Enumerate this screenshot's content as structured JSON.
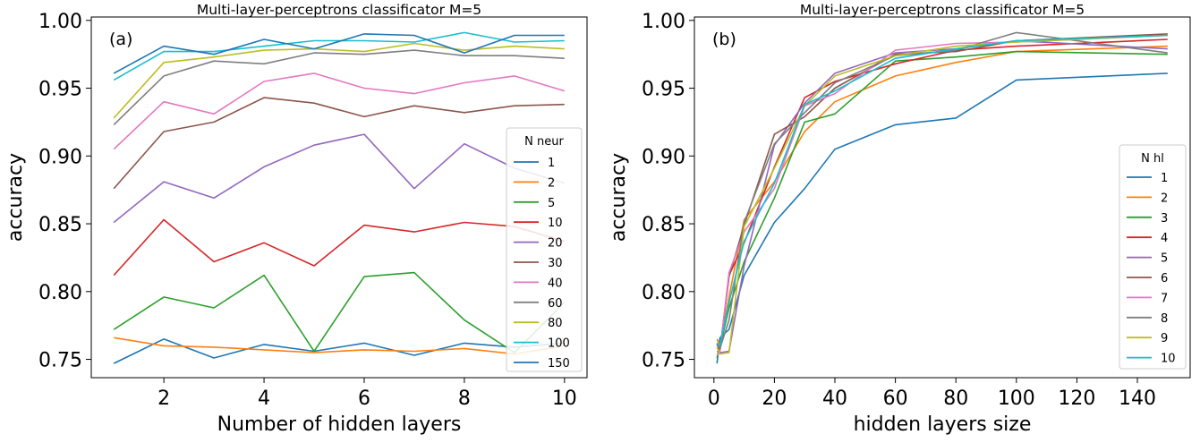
{
  "chart_data": [
    {
      "type": "line",
      "title": "Multi-layer-perceptrons classificator M=5",
      "panel_label": "(a)",
      "xlabel": "Number of hidden layers",
      "ylabel": "accuracy",
      "xlim": [
        0.55,
        10.45
      ],
      "ylim": [
        0.7365,
        1.0025
      ],
      "xticks": [
        2,
        4,
        6,
        8,
        10
      ],
      "yticks": [
        0.75,
        0.8,
        0.85,
        0.9,
        0.95,
        1.0
      ],
      "ytick_labels": [
        "0.75",
        "0.80",
        "0.85",
        "0.90",
        "0.95",
        "1.00"
      ],
      "grid": false,
      "legend": {
        "title": "N neur",
        "placement": "right"
      },
      "x": [
        1,
        2,
        3,
        4,
        5,
        6,
        7,
        8,
        9,
        10
      ],
      "series": [
        {
          "name": "1",
          "color": "#1f77b4",
          "values": [
            0.747,
            0.765,
            0.751,
            0.761,
            0.756,
            0.762,
            0.753,
            0.762,
            0.759,
            0.762
          ]
        },
        {
          "name": "2",
          "color": "#ff7f0e",
          "values": [
            0.766,
            0.76,
            0.759,
            0.757,
            0.755,
            0.757,
            0.756,
            0.758,
            0.754,
            0.76
          ]
        },
        {
          "name": "5",
          "color": "#2ca02c",
          "values": [
            0.772,
            0.796,
            0.788,
            0.812,
            0.756,
            0.811,
            0.814,
            0.779,
            0.755,
            0.792
          ]
        },
        {
          "name": "10",
          "color": "#d62728",
          "values": [
            0.812,
            0.853,
            0.822,
            0.836,
            0.819,
            0.849,
            0.844,
            0.851,
            0.848,
            0.837
          ]
        },
        {
          "name": "20",
          "color": "#9467bd",
          "values": [
            0.851,
            0.881,
            0.869,
            0.892,
            0.908,
            0.916,
            0.876,
            0.909,
            0.891,
            0.88
          ]
        },
        {
          "name": "30",
          "color": "#8c564b",
          "values": [
            0.876,
            0.918,
            0.925,
            0.943,
            0.939,
            0.929,
            0.937,
            0.932,
            0.937,
            0.938
          ]
        },
        {
          "name": "40",
          "color": "#e377c2",
          "values": [
            0.905,
            0.94,
            0.931,
            0.955,
            0.961,
            0.95,
            0.946,
            0.954,
            0.959,
            0.948
          ]
        },
        {
          "name": "60",
          "color": "#7f7f7f",
          "values": [
            0.923,
            0.959,
            0.97,
            0.968,
            0.976,
            0.975,
            0.978,
            0.974,
            0.974,
            0.972
          ]
        },
        {
          "name": "80",
          "color": "#bcbd22",
          "values": [
            0.928,
            0.969,
            0.973,
            0.978,
            0.979,
            0.977,
            0.983,
            0.978,
            0.981,
            0.979
          ]
        },
        {
          "name": "100",
          "color": "#17becf",
          "values": [
            0.956,
            0.977,
            0.977,
            0.981,
            0.985,
            0.985,
            0.984,
            0.991,
            0.984,
            0.985
          ]
        },
        {
          "name": "150",
          "color": "#1f77b4",
          "values": [
            0.961,
            0.981,
            0.975,
            0.986,
            0.979,
            0.99,
            0.989,
            0.976,
            0.989,
            0.989
          ]
        }
      ]
    },
    {
      "type": "line",
      "title": "Multi-layer-perceptrons classificator M=5",
      "panel_label": "(b)",
      "xlabel": "hidden layers size",
      "ylabel": "accuracy",
      "xlim": [
        -6.45,
        157.45
      ],
      "ylim": [
        0.7365,
        1.0025
      ],
      "xticks": [
        0,
        20,
        40,
        60,
        80,
        100,
        120,
        140
      ],
      "yticks": [
        0.75,
        0.8,
        0.85,
        0.9,
        0.95,
        1.0
      ],
      "ytick_labels": [
        "0.75",
        "0.80",
        "0.85",
        "0.90",
        "0.95",
        "1.00"
      ],
      "grid": false,
      "legend": {
        "title": "N hl",
        "placement": "right"
      },
      "x": [
        1,
        2,
        5,
        10,
        20,
        30,
        40,
        60,
        80,
        100,
        150
      ],
      "series": [
        {
          "name": "1",
          "color": "#1f77b4",
          "values": [
            0.747,
            0.766,
            0.772,
            0.812,
            0.851,
            0.876,
            0.905,
            0.923,
            0.928,
            0.956,
            0.961
          ]
        },
        {
          "name": "2",
          "color": "#ff7f0e",
          "values": [
            0.765,
            0.76,
            0.796,
            0.853,
            0.881,
            0.918,
            0.94,
            0.959,
            0.969,
            0.977,
            0.981
          ]
        },
        {
          "name": "3",
          "color": "#2ca02c",
          "values": [
            0.751,
            0.759,
            0.788,
            0.822,
            0.869,
            0.925,
            0.931,
            0.97,
            0.973,
            0.977,
            0.975
          ]
        },
        {
          "name": "4",
          "color": "#d62728",
          "values": [
            0.761,
            0.757,
            0.812,
            0.836,
            0.892,
            0.943,
            0.955,
            0.968,
            0.978,
            0.981,
            0.986
          ]
        },
        {
          "name": "5",
          "color": "#9467bd",
          "values": [
            0.756,
            0.755,
            0.756,
            0.819,
            0.908,
            0.939,
            0.961,
            0.976,
            0.979,
            0.985,
            0.979
          ]
        },
        {
          "name": "6",
          "color": "#8c564b",
          "values": [
            0.762,
            0.757,
            0.811,
            0.849,
            0.916,
            0.929,
            0.95,
            0.975,
            0.977,
            0.985,
            0.99
          ]
        },
        {
          "name": "7",
          "color": "#e377c2",
          "values": [
            0.753,
            0.756,
            0.814,
            0.844,
            0.876,
            0.937,
            0.946,
            0.978,
            0.983,
            0.984,
            0.989
          ]
        },
        {
          "name": "8",
          "color": "#7f7f7f",
          "values": [
            0.762,
            0.758,
            0.779,
            0.851,
            0.909,
            0.932,
            0.954,
            0.974,
            0.978,
            0.991,
            0.976
          ]
        },
        {
          "name": "9",
          "color": "#bcbd22",
          "values": [
            0.759,
            0.754,
            0.755,
            0.848,
            0.891,
            0.937,
            0.959,
            0.974,
            0.981,
            0.984,
            0.989
          ]
        },
        {
          "name": "10",
          "color": "#17becf",
          "values": [
            0.762,
            0.76,
            0.792,
            0.837,
            0.88,
            0.938,
            0.948,
            0.972,
            0.979,
            0.985,
            0.989
          ]
        }
      ]
    }
  ]
}
